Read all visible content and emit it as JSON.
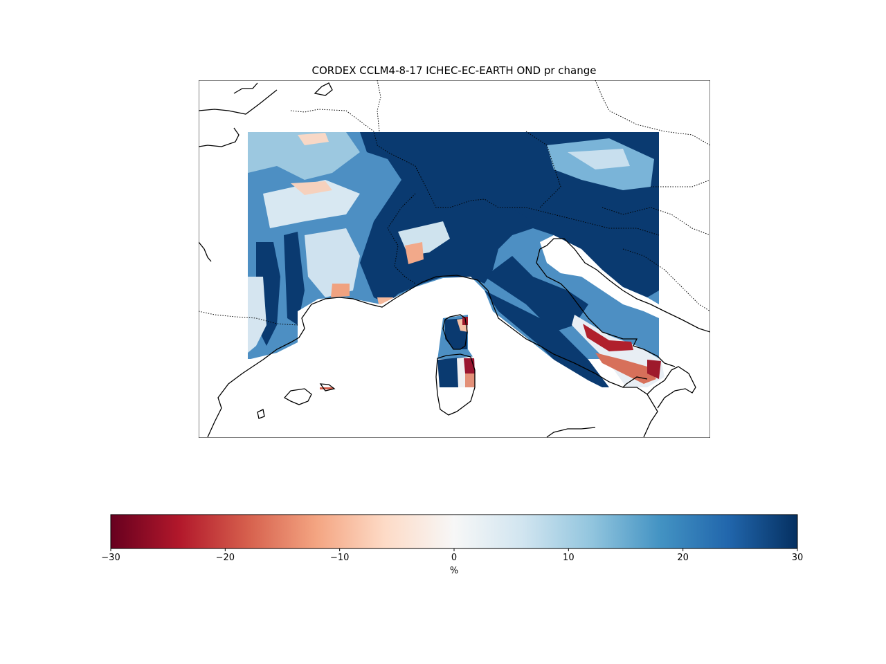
{
  "title": "CORDEX CCLM4-8-17 ICHEC-EC-EARTH OND pr change",
  "colorbar": {
    "label": "%",
    "ticks": [
      -30,
      -20,
      -10,
      0,
      10,
      20,
      30
    ],
    "tick_labels": [
      "−30",
      "−20",
      "−10",
      "0",
      "10",
      "20",
      "30"
    ],
    "vmin": -30,
    "vmax": 30,
    "colormap": "RdBu",
    "colors": [
      "#67001f",
      "#b2182b",
      "#d6604d",
      "#f4a582",
      "#fddbc7",
      "#f7f7f7",
      "#d1e5f0",
      "#92c5de",
      "#4393c3",
      "#2166ac",
      "#053061"
    ]
  },
  "map": {
    "variable": "pr",
    "season": "OND",
    "coastline_color": "#000000",
    "border_style": "dotted",
    "ocean_color": "#ffffff"
  }
}
